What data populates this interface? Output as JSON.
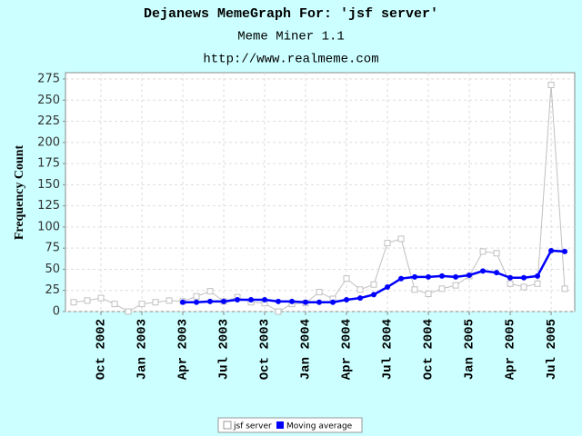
{
  "chart_data": {
    "type": "line",
    "title": "Dejanews MemeGraph For: 'jsf server'",
    "subtitle": "Meme Miner 1.1",
    "url": "http://www.realmeme.com",
    "y_label": "Frequency Count",
    "x": [
      "2002-08",
      "2002-09",
      "2002-10",
      "2002-11",
      "2002-12",
      "2003-01",
      "2003-02",
      "2003-03",
      "2003-04",
      "2003-05",
      "2003-06",
      "2003-07",
      "2003-08",
      "2003-09",
      "2003-10",
      "2003-11",
      "2003-12",
      "2004-01",
      "2004-02",
      "2004-03",
      "2004-04",
      "2004-05",
      "2004-06",
      "2004-07",
      "2004-08",
      "2004-09",
      "2004-10",
      "2004-11",
      "2004-12",
      "2005-01",
      "2005-02",
      "2005-03",
      "2005-04",
      "2005-05",
      "2005-06",
      "2005-07",
      "2005-08"
    ],
    "series": [
      {
        "name": "jsf server",
        "color": "#c0c0c0",
        "values": [
          11,
          13,
          16,
          9,
          0,
          9,
          11,
          13,
          12,
          18,
          24,
          12,
          17,
          11,
          10,
          0,
          9,
          10,
          23,
          15,
          39,
          26,
          32,
          81,
          86,
          26,
          21,
          27,
          31,
          42,
          71,
          69,
          33,
          29,
          33,
          268,
          27
        ]
      },
      {
        "name": "Moving average",
        "color": "#0000ff",
        "values": [
          null,
          null,
          null,
          null,
          null,
          null,
          null,
          null,
          11,
          11,
          12,
          12,
          14,
          14,
          14,
          12,
          12,
          11,
          11,
          11,
          14,
          16,
          20,
          29,
          39,
          41,
          41,
          42,
          41,
          43,
          48,
          46,
          40,
          40,
          42,
          72,
          71
        ]
      }
    ],
    "ylim": [
      0,
      282.5
    ],
    "yticks": [
      0,
      25,
      50,
      75,
      100,
      125,
      150,
      175,
      200,
      225,
      250,
      275
    ],
    "xticks": [
      {
        "value": "2002-10",
        "label": "Oct 2002"
      },
      {
        "value": "2003-01",
        "label": "Jan 2003"
      },
      {
        "value": "2003-04",
        "label": "Apr 2003"
      },
      {
        "value": "2003-07",
        "label": "Jul 2003"
      },
      {
        "value": "2003-10",
        "label": "Oct 2003"
      },
      {
        "value": "2004-01",
        "label": "Jan 2004"
      },
      {
        "value": "2004-04",
        "label": "Apr 2004"
      },
      {
        "value": "2004-07",
        "label": "Jul 2004"
      },
      {
        "value": "2004-10",
        "label": "Oct 2004"
      },
      {
        "value": "2005-01",
        "label": "Jan 2005"
      },
      {
        "value": "2005-04",
        "label": "Apr 2005"
      },
      {
        "value": "2005-07",
        "label": "Jul 2005"
      }
    ],
    "grid": true
  }
}
